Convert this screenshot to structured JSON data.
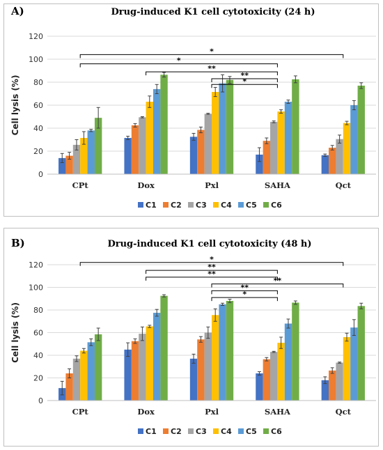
{
  "series_colors": [
    "#4472c4",
    "#ed7d31",
    "#a5a5a5",
    "#ffc000",
    "#5b9bd5",
    "#70ad47"
  ],
  "chart_data": [
    {
      "type": "bar",
      "panel_label": "A)",
      "title": "Drug-induced K1 cell cytotoxicity (24 h)",
      "xlabel": "",
      "ylabel": "Cell lysis (%)",
      "ylim": [
        0,
        120
      ],
      "yticks": [
        0,
        20,
        40,
        60,
        80,
        100,
        120
      ],
      "grid": true,
      "legend_position": "bottom",
      "categories": [
        "CPt",
        "Dox",
        "Pxl",
        "SAHA",
        "Qct"
      ],
      "series": [
        {
          "name": "C1",
          "values": [
            14,
            31.5,
            32.5,
            17,
            16.5
          ],
          "errors": [
            4,
            1.5,
            3,
            6,
            1
          ]
        },
        {
          "name": "C2",
          "values": [
            16,
            42.5,
            38.5,
            29,
            23
          ],
          "errors": [
            3,
            1.5,
            2.5,
            2.5,
            2
          ]
        },
        {
          "name": "C3",
          "values": [
            25.5,
            49.5,
            52.5,
            45.5,
            30.5
          ],
          "errors": [
            4.5,
            0.5,
            0.5,
            0.8,
            3.5
          ]
        },
        {
          "name": "C4",
          "values": [
            31.5,
            63,
            71.5,
            54.5,
            44.5
          ],
          "errors": [
            5.5,
            5,
            4,
            1.5,
            1.5
          ]
        },
        {
          "name": "C5",
          "values": [
            38,
            74,
            79,
            63,
            60
          ],
          "errors": [
            1,
            4,
            7.5,
            1.5,
            4
          ]
        },
        {
          "name": "C6",
          "values": [
            49,
            86.5,
            82,
            82.5,
            77
          ],
          "errors": [
            9,
            2,
            3,
            3,
            2.5
          ]
        }
      ],
      "significance": [
        {
          "from_category": 0,
          "to_category": 4,
          "y": 104,
          "label": "*"
        },
        {
          "from_category": 0,
          "to_category": 3,
          "y": 96,
          "label": "*"
        },
        {
          "from_category": 1,
          "to_category": 3,
          "y": 89,
          "label": "**"
        },
        {
          "from_category": 2,
          "to_category": 3,
          "y": 83,
          "label": "**"
        },
        {
          "from_category": 2,
          "to_category": 3,
          "y": 78,
          "label": "*"
        }
      ]
    },
    {
      "type": "bar",
      "panel_label": "B)",
      "title": "Drug-induced K1 cell cytotoxicity (48 h)",
      "xlabel": "",
      "ylabel": "Cell lysis (%)",
      "ylim": [
        0,
        120
      ],
      "yticks": [
        0,
        20,
        40,
        60,
        80,
        100,
        120
      ],
      "grid": true,
      "legend_position": "bottom",
      "categories": [
        "CPt",
        "Dox",
        "Pxl",
        "SAHA",
        "Qct"
      ],
      "series": [
        {
          "name": "C1",
          "values": [
            11,
            45,
            37,
            24,
            18
          ],
          "errors": [
            6,
            6,
            4,
            1.5,
            3
          ]
        },
        {
          "name": "C2",
          "values": [
            24,
            52.5,
            54,
            36.5,
            26.5
          ],
          "errors": [
            4,
            2,
            2.5,
            1.5,
            2.5
          ]
        },
        {
          "name": "C3",
          "values": [
            37,
            59,
            60,
            43,
            33.5
          ],
          "errors": [
            2.5,
            6,
            5,
            0.5,
            0.5
          ]
        },
        {
          "name": "C4",
          "values": [
            44,
            65.5,
            75.5,
            51,
            56
          ],
          "errors": [
            2,
            1,
            5.5,
            5,
            3.5
          ]
        },
        {
          "name": "C5",
          "values": [
            51.5,
            77.5,
            85,
            68,
            64.5
          ],
          "errors": [
            3,
            3,
            1,
            4,
            7
          ]
        },
        {
          "name": "C6",
          "values": [
            58.5,
            92.5,
            88,
            86.5,
            83.5
          ],
          "errors": [
            5.5,
            1,
            1.5,
            1.5,
            2.5
          ]
        }
      ],
      "significance": [
        {
          "from_category": 0,
          "to_category": 4,
          "y": 122,
          "label": "*"
        },
        {
          "from_category": 1,
          "to_category": 3,
          "y": 115,
          "label": "**"
        },
        {
          "from_category": 1,
          "to_category": 3,
          "y": 109,
          "label": "**"
        },
        {
          "from_category": 2,
          "to_category": 4,
          "y": 103,
          "label": "**"
        },
        {
          "from_category": 2,
          "to_category": 3,
          "y": 97,
          "label": "**"
        },
        {
          "from_category": 2,
          "to_category": 3,
          "y": 91,
          "label": "*"
        }
      ]
    }
  ]
}
